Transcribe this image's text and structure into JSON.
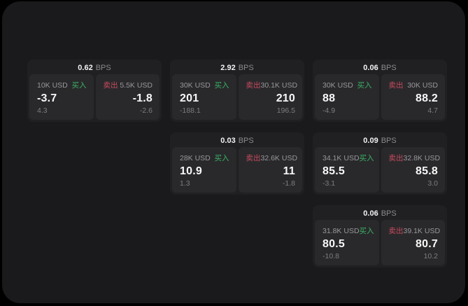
{
  "colors": {
    "page_bg": "#000000",
    "panel_bg": "#1a1a1c",
    "card_bg": "#202022",
    "tile_bg": "#29292b",
    "buy_green": "#3bb266",
    "sell_red": "#c94a5f",
    "value_white": "#f7f7f8",
    "label_gray": "#98989d"
  },
  "labels": {
    "bps_unit": "BPS",
    "buy": "买入",
    "sell": "卖出"
  },
  "cards": [
    {
      "row": 1,
      "col": 1,
      "bps": "0.62",
      "buy": {
        "amount": "10K USD",
        "price": "-3.7",
        "delta": "4.3"
      },
      "sell": {
        "amount": "5.5K USD",
        "price": "-1.8",
        "delta": "-2.6"
      }
    },
    {
      "row": 1,
      "col": 2,
      "bps": "2.92",
      "buy": {
        "amount": "30K USD",
        "price": "201",
        "delta": "-188.1"
      },
      "sell": {
        "amount": "30.1K USD",
        "price": "210",
        "delta": "196.5"
      }
    },
    {
      "row": 1,
      "col": 3,
      "bps": "0.06",
      "buy": {
        "amount": "30K USD",
        "price": "88",
        "delta": "-4.9"
      },
      "sell": {
        "amount": "30K USD",
        "price": "88.2",
        "delta": "4.7"
      }
    },
    {
      "row": 2,
      "col": 2,
      "bps": "0.03",
      "buy": {
        "amount": "28K USD",
        "price": "10.9",
        "delta": "1.3"
      },
      "sell": {
        "amount": "32.6K USD",
        "price": "11",
        "delta": "-1.8"
      }
    },
    {
      "row": 2,
      "col": 3,
      "bps": "0.09",
      "buy": {
        "amount": "34.1K USD",
        "price": "85.5",
        "delta": "-3.1"
      },
      "sell": {
        "amount": "32.8K USD",
        "price": "85.8",
        "delta": "3.0"
      }
    },
    {
      "row": 3,
      "col": 3,
      "bps": "0.06",
      "buy": {
        "amount": "31.8K USD",
        "price": "80.5",
        "delta": "-10.8"
      },
      "sell": {
        "amount": "39.1K USD",
        "price": "80.7",
        "delta": "10.2"
      }
    }
  ]
}
